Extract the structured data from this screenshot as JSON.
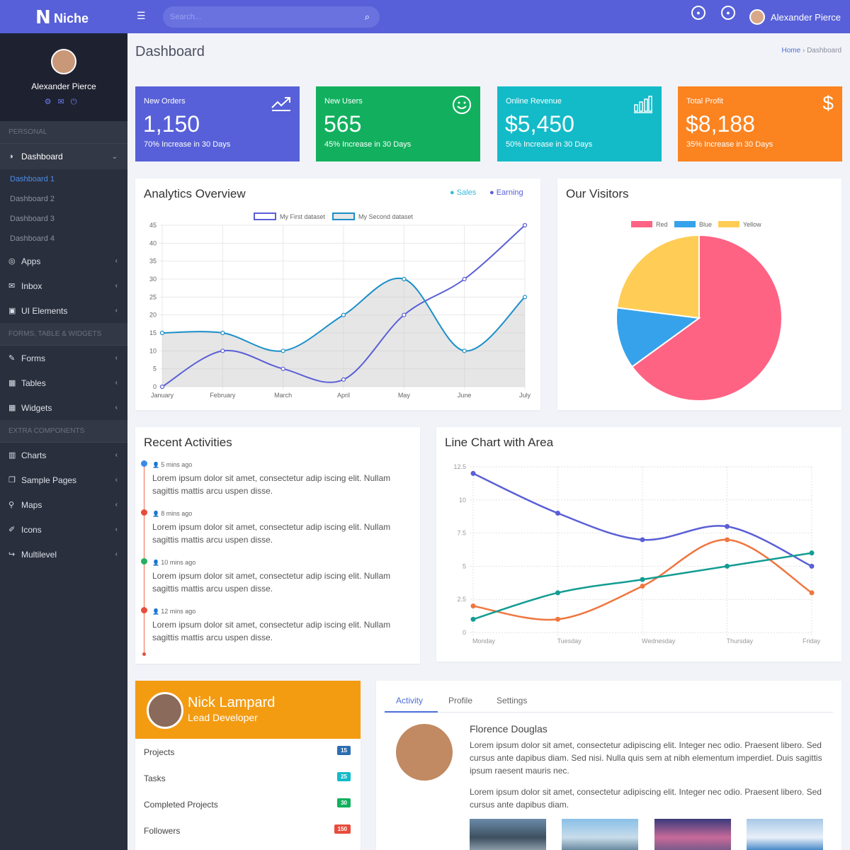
{
  "app": {
    "brand_mark": "N",
    "brand": "Niche",
    "search_placeholder": "Search..."
  },
  "topbar": {
    "user": "Alexander Pierce"
  },
  "sidebar": {
    "user": "Alexander Pierce",
    "sections": [
      "PERSONAL",
      "FORMS, TABLE & WIDGETS",
      "EXTRA COMPONENTS"
    ],
    "dashboard": "Dashboard",
    "sub_items": [
      "Dashboard 1",
      "Dashboard 2",
      "Dashboard 3",
      "Dashboard 4"
    ],
    "group1": [
      "Apps",
      "Inbox",
      "UI Elements"
    ],
    "group2": [
      "Forms",
      "Tables",
      "Widgets"
    ],
    "group3": [
      "Charts",
      "Sample Pages",
      "Maps",
      "Icons",
      "Multilevel"
    ]
  },
  "page": {
    "title": "Dashboard",
    "crumb_home": "Home",
    "crumb_current": "Dashboard"
  },
  "stats": [
    {
      "label": "New Orders",
      "value": "1,150",
      "sub": "70% Increase in 30 Days",
      "color": "#5760d8",
      "icon": "trending-up-icon"
    },
    {
      "label": "New Users",
      "value": "565",
      "sub": "45% Increase in 30 Days",
      "color": "#12b05e",
      "icon": "smile-icon"
    },
    {
      "label": "Online Revenue",
      "value": "$5,450",
      "sub": "50% Increase in 30 Days",
      "color": "#13bbc8",
      "icon": "bar-chart-icon"
    },
    {
      "label": "Total Profit",
      "value": "$8,188",
      "sub": "35% Increase in 30 Days",
      "color": "#fb8320",
      "icon": "dollar-icon"
    }
  ],
  "analytics": {
    "title": "Analytics Overview",
    "legend_sales": "Sales",
    "legend_earning": "Earning"
  },
  "visitors": {
    "title": "Our Visitors"
  },
  "activities": {
    "title": "Recent Activities",
    "items": [
      {
        "time": "5 mins ago",
        "text": "Lorem ipsum dolor sit amet, consectetur adip iscing elit. Nullam sagittis mattis arcu uspen disse.",
        "color": "#3a8be8"
      },
      {
        "time": "8 mins ago",
        "text": "Lorem ipsum dolor sit amet, consectetur adip iscing elit. Nullam sagittis mattis arcu uspen disse.",
        "color": "#e74c3c"
      },
      {
        "time": "10 mins ago",
        "text": "Lorem ipsum dolor sit amet, consectetur adip iscing elit. Nullam sagittis mattis arcu uspen disse.",
        "color": "#27ae60"
      },
      {
        "time": "12 mins ago",
        "text": "Lorem ipsum dolor sit amet, consectetur adip iscing elit. Nullam sagittis mattis arcu uspen disse.",
        "color": "#e74c3c"
      }
    ]
  },
  "linearea": {
    "title": "Line Chart with Area"
  },
  "profile_card": {
    "name": "Nick Lampard",
    "role": "Lead Developer",
    "rows": [
      {
        "label": "Projects",
        "badge": "15",
        "color": "#2c6db0"
      },
      {
        "label": "Tasks",
        "badge": "25",
        "color": "#13bbc8"
      },
      {
        "label": "Completed Projects",
        "badge": "30",
        "color": "#12b05e"
      },
      {
        "label": "Followers",
        "badge": "150",
        "color": "#e74c3c"
      }
    ]
  },
  "feed": {
    "tabs": [
      "Activity",
      "Profile",
      "Settings"
    ],
    "name": "Florence Douglas",
    "text1": "Lorem ipsum dolor sit amet, consectetur adipiscing elit. Integer nec odio. Praesent libero. Sed cursus ante dapibus diam. Sed nisi. Nulla quis sem at nibh elementum imperdiet. Duis sagittis ipsum raesent mauris nec.",
    "text2": "Lorem ipsum dolor sit amet, consectetur adipiscing elit. Integer nec odio. Praesent libero. Sed cursus ante dapibus diam."
  },
  "chart_data": [
    {
      "type": "line",
      "categories": [
        "January",
        "February",
        "March",
        "April",
        "May",
        "June",
        "July"
      ],
      "series": [
        {
          "name": "My First dataset",
          "values": [
            0,
            10,
            5,
            2,
            20,
            30,
            45
          ],
          "color": "#5a5fd6",
          "fill": false
        },
        {
          "name": "My Second dataset",
          "values": [
            15,
            15,
            10,
            20,
            30,
            10,
            25
          ],
          "color": "#1a8fc9",
          "fill": true
        }
      ],
      "ylim": [
        0,
        45
      ],
      "yticks": [
        0,
        5,
        10,
        15,
        20,
        25,
        30,
        35,
        40,
        45
      ],
      "legend": "top"
    },
    {
      "type": "pie",
      "labels": [
        "Red",
        "Blue",
        "Yellow"
      ],
      "values": [
        65,
        12,
        23
      ],
      "colors": [
        "#ff6384",
        "#36a2eb",
        "#ffcd56"
      ],
      "legend": "top"
    },
    {
      "type": "line",
      "categories": [
        "Monday",
        "Tuesday",
        "Wednesday",
        "Thursday",
        "Friday"
      ],
      "series": [
        {
          "values": [
            12,
            9,
            7,
            8,
            5
          ],
          "color": "#5a5fd6"
        },
        {
          "values": [
            2,
            1,
            3.5,
            7,
            3
          ],
          "color": "#f0763f"
        },
        {
          "values": [
            1,
            3,
            4,
            5,
            6
          ],
          "color": "#139c92"
        }
      ],
      "ylim": [
        0,
        12.5
      ],
      "yticks": [
        "0",
        "2.5",
        "5",
        "7.5",
        "10",
        "12.5"
      ]
    }
  ]
}
